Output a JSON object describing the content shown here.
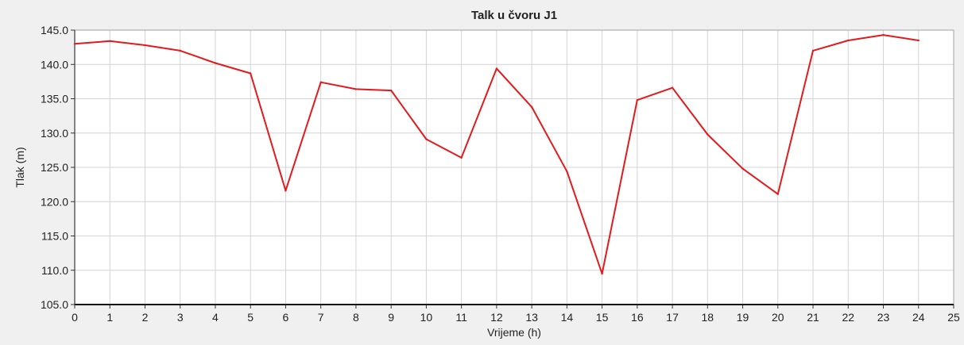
{
  "chart_data": {
    "type": "line",
    "title": "Talk u čvoru J1",
    "xlabel": "Vrijeme (h)",
    "ylabel": "Tlak (m)",
    "xlim": [
      0,
      25
    ],
    "ylim": [
      105,
      145
    ],
    "x_ticks": [
      "0",
      "1",
      "2",
      "3",
      "4",
      "5",
      "6",
      "7",
      "8",
      "9",
      "10",
      "11",
      "12",
      "13",
      "14",
      "15",
      "16",
      "17",
      "18",
      "19",
      "20",
      "21",
      "22",
      "23",
      "24",
      "25"
    ],
    "y_ticks": [
      "105.0",
      "110.0",
      "115.0",
      "120.0",
      "125.0",
      "130.0",
      "135.0",
      "140.0",
      "145.0"
    ],
    "grid": true,
    "series": [
      {
        "color": "#e31a1c",
        "x": [
          0,
          1,
          2,
          3,
          4,
          5,
          6,
          7,
          8,
          9,
          10,
          11,
          12,
          13,
          14,
          15,
          16,
          17,
          18,
          19,
          20,
          21,
          22,
          23,
          24
        ],
        "y": [
          143.0,
          143.4,
          142.8,
          142.0,
          140.2,
          138.7,
          121.6,
          137.4,
          136.4,
          136.2,
          129.1,
          126.4,
          139.4,
          133.8,
          124.4,
          109.5,
          134.8,
          136.6,
          129.8,
          124.8,
          121.1,
          142.0,
          143.5,
          144.3,
          143.5
        ]
      }
    ]
  }
}
